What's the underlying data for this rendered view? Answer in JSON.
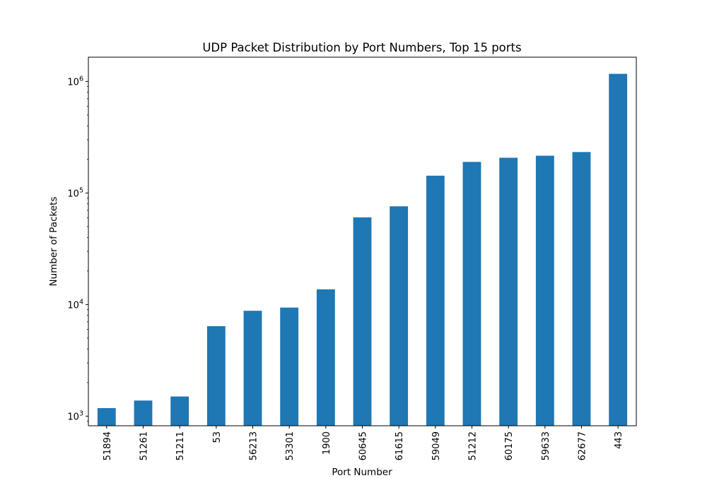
{
  "chart_data": {
    "type": "bar",
    "title": "UDP Packet Distribution by Port Numbers, Top 15 ports",
    "xlabel": "Port Number",
    "ylabel": "Number of Packets",
    "y_scale": "log",
    "ylim": [
      820,
      1650000
    ],
    "y_ticks": [
      {
        "value": 1000,
        "base": "10",
        "exp": "3"
      },
      {
        "value": 10000,
        "base": "10",
        "exp": "4"
      },
      {
        "value": 100000,
        "base": "10",
        "exp": "5"
      },
      {
        "value": 1000000,
        "base": "10",
        "exp": "6"
      }
    ],
    "categories": [
      "51894",
      "51261",
      "51211",
      "53",
      "56213",
      "53301",
      "1900",
      "60645",
      "61615",
      "59049",
      "51212",
      "60175",
      "59633",
      "62677",
      "443"
    ],
    "values": [
      1180,
      1380,
      1500,
      6400,
      8800,
      9400,
      13700,
      60500,
      76000,
      143000,
      190000,
      207000,
      216000,
      233000,
      1170000
    ],
    "bar_color": "#1f77b4",
    "grid": false,
    "legend": "none"
  }
}
